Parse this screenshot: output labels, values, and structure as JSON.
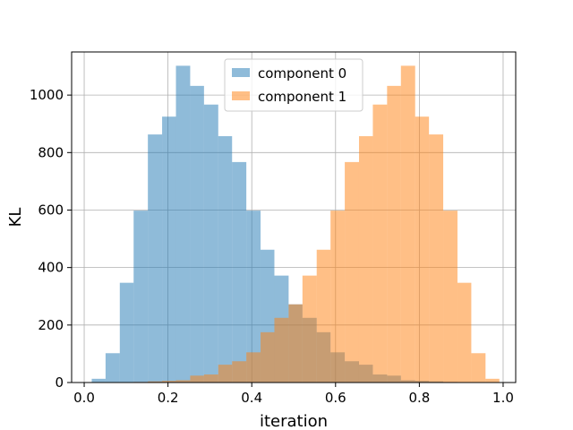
{
  "chart_data": {
    "type": "bar",
    "subtype": "overlapping histogram",
    "xlabel": "iteration",
    "ylabel": "KL",
    "xlim": [
      -0.03,
      1.03
    ],
    "ylim": [
      0,
      1150
    ],
    "xticks": [
      0.0,
      0.2,
      0.4,
      0.6,
      0.8,
      1.0
    ],
    "xtick_labels": [
      "0.0",
      "0.2",
      "0.4",
      "0.6",
      "0.8",
      "1.0"
    ],
    "yticks": [
      0,
      200,
      400,
      600,
      800,
      1000
    ],
    "ytick_labels": [
      "0",
      "200",
      "400",
      "600",
      "800",
      "1000"
    ],
    "grid": true,
    "legend_position": "top-center",
    "series": [
      {
        "name": "component 0",
        "color": "#1f77b4",
        "opacity": 0.5,
        "bin_edges": [
          0.018,
          0.051,
          0.085,
          0.118,
          0.152,
          0.186,
          0.219,
          0.253,
          0.286,
          0.32,
          0.353,
          0.387,
          0.421,
          0.454,
          0.488,
          0.521,
          0.555,
          0.588,
          0.622,
          0.656,
          0.689,
          0.723,
          0.756,
          0.79,
          0.823,
          0.857,
          0.891,
          0.924,
          0.958,
          0.991
        ],
        "counts": [
          13,
          102,
          347,
          598,
          863,
          925,
          1102,
          1032,
          967,
          857,
          767,
          598,
          462,
          372,
          272,
          225,
          175,
          105,
          74,
          62,
          28,
          24,
          8,
          6,
          4,
          2,
          1,
          0,
          0
        ]
      },
      {
        "name": "component 1",
        "color": "#ff7f0e",
        "opacity": 0.5,
        "bin_edges": [
          0.018,
          0.051,
          0.085,
          0.118,
          0.152,
          0.186,
          0.219,
          0.253,
          0.286,
          0.32,
          0.353,
          0.387,
          0.421,
          0.454,
          0.488,
          0.521,
          0.555,
          0.588,
          0.622,
          0.656,
          0.689,
          0.723,
          0.756,
          0.79,
          0.823,
          0.857,
          0.891,
          0.924,
          0.958,
          0.991
        ],
        "counts": [
          0,
          0,
          1,
          2,
          4,
          6,
          8,
          24,
          28,
          62,
          74,
          105,
          175,
          225,
          272,
          372,
          462,
          598,
          767,
          857,
          967,
          1032,
          1102,
          925,
          863,
          598,
          347,
          102,
          13
        ]
      }
    ]
  }
}
